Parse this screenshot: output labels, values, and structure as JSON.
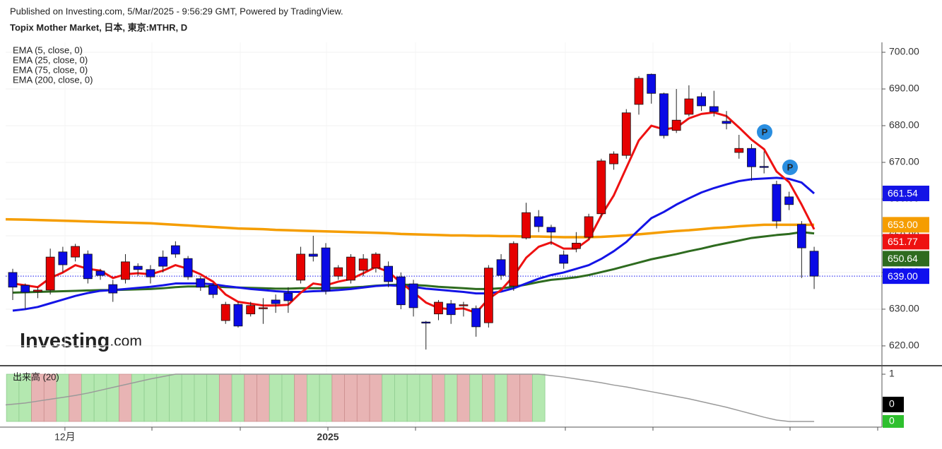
{
  "header": {
    "published": "Published on Investing.com, 5/Mar/2025 - 9:56:29 GMT, Powered by TradingView.",
    "watermark": [
      "Investing",
      ".com"
    ]
  },
  "chart_data": {
    "type": "candlestick",
    "title": "Topix Mother Market, 日本, 東京:MTHR, D",
    "categories": [
      null,
      null,
      null,
      null,
      "12月",
      null,
      null,
      null,
      null,
      null,
      null,
      null,
      null,
      null,
      null,
      null,
      null,
      null,
      null,
      null,
      null,
      null,
      null,
      null,
      null,
      "2025",
      null,
      null,
      null,
      null,
      null,
      null,
      null,
      null,
      null,
      null,
      null,
      null,
      null,
      null,
      null,
      null,
      null,
      null,
      null,
      null,
      null,
      null,
      null,
      null,
      null,
      null,
      null,
      null,
      null,
      null,
      null,
      null,
      null,
      null,
      null,
      null,
      null,
      null,
      null
    ],
    "candles": {
      "open": [
        640,
        636.5,
        634.8,
        635.2,
        645.6,
        644.2,
        645,
        640.4,
        636.7,
        638.1,
        641.7,
        640.8,
        644.2,
        647.3,
        643.8,
        638.3,
        636.5,
        626.9,
        631.3,
        628.7,
        630.2,
        632.5,
        634.4,
        637.9,
        645,
        646.7,
        639,
        637.9,
        640.6,
        641.2,
        641.7,
        638.8,
        636.9,
        626.5,
        628.7,
        631.5,
        631,
        630.2,
        626.3,
        643.5,
        636.3,
        649.4,
        655.2,
        652.3,
        644.8,
        646.5,
        649.6,
        656,
        669.6,
        671.9,
        685.8,
        694,
        688.7,
        678.7,
        683.1,
        687.9,
        685.2,
        681.2,
        672.7,
        673.8,
        668.9,
        664,
        660.6,
        653.1,
        645.8
      ],
      "high": [
        641,
        637,
        636,
        646.5,
        647,
        647.8,
        646,
        641,
        638,
        645,
        642.5,
        642,
        646,
        648.5,
        644.5,
        639,
        637,
        632,
        632,
        632,
        633,
        634,
        636,
        647,
        650,
        648,
        642,
        645,
        645,
        645.5,
        643,
        640,
        638,
        626.8,
        632.5,
        632.5,
        632,
        631,
        642,
        645,
        648.5,
        659,
        657,
        653,
        646,
        651,
        656,
        671,
        673,
        684.5,
        693.5,
        694.2,
        689,
        690,
        691,
        689,
        689.5,
        684,
        677.5,
        675,
        673,
        665,
        662,
        654,
        647
      ],
      "low": [
        632.5,
        630,
        633,
        634,
        640,
        643,
        637,
        638,
        632,
        637,
        639,
        637,
        640,
        644,
        638,
        635,
        633,
        626,
        625,
        628,
        626,
        629,
        629,
        637,
        643,
        634,
        638,
        637,
        639,
        640,
        636,
        630,
        628,
        619,
        627,
        626,
        628,
        622.5,
        625,
        638,
        635,
        649,
        651,
        647.5,
        641,
        645.5,
        649,
        655,
        668,
        671,
        683,
        686,
        676.5,
        678,
        682.5,
        684,
        682.5,
        679,
        671,
        665,
        667,
        652,
        657,
        638.5,
        635.5
      ],
      "close": [
        636,
        634.6,
        635.2,
        644.2,
        642.1,
        647.1,
        638.3,
        639.2,
        634.4,
        642.9,
        640.8,
        638.8,
        641.7,
        645,
        638.8,
        636,
        634,
        631.3,
        625.4,
        631,
        630.4,
        631.5,
        632.3,
        645,
        644.4,
        635,
        641.3,
        644.2,
        643.7,
        645,
        637.5,
        631.2,
        630.4,
        626.2,
        631.9,
        628.5,
        631.2,
        625.2,
        641.2,
        639.2,
        647.9,
        656.3,
        652.5,
        651,
        642.5,
        648,
        655.2,
        670.4,
        672.3,
        683.5,
        692.9,
        688.8,
        677.3,
        681.5,
        687.3,
        685.4,
        683.8,
        680.6,
        673.8,
        668.8,
        668.7,
        654,
        658.5,
        646.7,
        639
      ],
      "up_color": "#e60000",
      "down_color": "#0a0ae6",
      "last_close_label": "639.00"
    },
    "series": [
      {
        "name": "EMA (5, close, 0)",
        "color": "#ee1111",
        "last_label": "651.77",
        "values": [
          637,
          636.5,
          636,
          638.5,
          640,
          642,
          641,
          640.5,
          638.5,
          639.5,
          639.8,
          639.5,
          640.5,
          642,
          641,
          639.5,
          637.5,
          634,
          632,
          631.5,
          631,
          631,
          631.2,
          634.5,
          637,
          636.5,
          637.5,
          638.2,
          639.8,
          641.5,
          640.2,
          637.2,
          634.6,
          631.8,
          630.3,
          630,
          630.2,
          629,
          632.8,
          635.2,
          639,
          644,
          647,
          648.2,
          646.5,
          646.5,
          649,
          655.5,
          661,
          668.5,
          676,
          680,
          679,
          679.5,
          682,
          683.2,
          683.6,
          682.6,
          679.5,
          676.2,
          673.6,
          667.5,
          664.6,
          658.5,
          651.77
        ]
      },
      {
        "name": "EMA (25, close, 0)",
        "color": "#1414e6",
        "last_label": "661.54",
        "values": [
          629.6,
          630,
          630.6,
          631.6,
          632.6,
          633.6,
          634.4,
          635,
          635.2,
          635.5,
          635.8,
          636.1,
          636.5,
          637,
          637,
          637,
          636.8,
          636.3,
          635.9,
          635.5,
          635.2,
          634.9,
          634.7,
          634.7,
          634.9,
          635,
          635.2,
          635.5,
          635.9,
          636.3,
          636.5,
          636.3,
          636.1,
          635.6,
          635.3,
          635,
          634.7,
          634.3,
          634.3,
          634.8,
          635.7,
          637,
          638.3,
          639.3,
          640,
          641,
          642,
          643.7,
          645.8,
          648.3,
          651.6,
          654.8,
          656.5,
          658.5,
          660.2,
          661.8,
          663,
          664,
          664.9,
          665.4,
          665.6,
          665.8,
          665.5,
          664.5,
          661.54
        ]
      },
      {
        "name": "EMA (75, close, 0)",
        "color": "#2e6b1f",
        "last_label": "650.64",
        "values": [
          634.5,
          634.6,
          634.7,
          634.8,
          634.9,
          635,
          635.1,
          635.2,
          635.2,
          635.3,
          635.4,
          635.5,
          635.7,
          636,
          636.2,
          636.2,
          636.2,
          636,
          635.9,
          635.8,
          635.7,
          635.6,
          635.6,
          635.7,
          635.7,
          635.7,
          635.8,
          635.9,
          636.1,
          636.4,
          636.6,
          636.7,
          636.6,
          636.4,
          636.1,
          635.9,
          635.7,
          635.5,
          635.5,
          635.7,
          636.1,
          636.7,
          637.4,
          638,
          638.3,
          638.7,
          639.3,
          640.1,
          640.9,
          641.8,
          642.7,
          643.6,
          644.3,
          645,
          645.8,
          646.5,
          647.3,
          648,
          648.7,
          649.4,
          649.8,
          650.2,
          650.5,
          651,
          650.64
        ]
      },
      {
        "name": "EMA (200, close, 0)",
        "color": "#f59d00",
        "last_label": "653.00",
        "values": [
          654.5,
          654.4,
          654.3,
          654.2,
          654.1,
          654,
          653.9,
          653.8,
          653.7,
          653.6,
          653.5,
          653.4,
          653.2,
          653,
          652.8,
          652.6,
          652.4,
          652.2,
          652,
          651.9,
          651.8,
          651.6,
          651.5,
          651.4,
          651.3,
          651.2,
          651.1,
          651,
          650.9,
          650.8,
          650.7,
          650.5,
          650.4,
          650.3,
          650.2,
          650.1,
          650.1,
          650,
          650,
          649.9,
          649.9,
          649.8,
          649.8,
          649.7,
          649.6,
          649.6,
          649.6,
          649.7,
          649.9,
          650.1,
          650.4,
          650.7,
          651,
          651.3,
          651.5,
          651.8,
          652.1,
          652.3,
          652.6,
          652.8,
          653,
          653,
          653,
          653,
          653
        ]
      }
    ],
    "ylim": [
      614.6,
      702.7
    ],
    "yticks": [
      {
        "value": 620,
        "label": "620.00"
      },
      {
        "value": 630,
        "label": "630.00"
      },
      {
        "value": 640,
        "label": "640.00"
      },
      {
        "value": 650,
        "label": "650.00"
      },
      {
        "value": 660,
        "label": "660.00"
      },
      {
        "value": 670,
        "label": "670.00"
      },
      {
        "value": 680,
        "label": "680.00"
      },
      {
        "value": 690,
        "label": "690.00"
      },
      {
        "value": 700,
        "label": "700.00"
      }
    ],
    "grid": true,
    "markers": [
      "P",
      "P"
    ],
    "volume": {
      "name": "出来高 (20)",
      "up_color": "#e8b4b4",
      "down_color": "#b4e8b0",
      "ma_color": "#9a9a9a",
      "values": [
        1,
        1,
        1,
        1,
        1,
        1,
        1,
        1,
        1,
        1,
        1,
        1,
        1,
        1,
        1,
        1,
        1,
        1,
        1,
        1,
        1,
        1,
        1,
        1,
        1,
        1,
        1,
        1,
        1,
        1,
        1,
        1,
        1,
        1,
        1,
        1,
        1,
        1,
        1,
        1,
        1,
        1,
        1,
        0,
        0,
        0,
        0,
        0,
        0,
        0,
        0,
        0,
        0,
        0,
        0,
        0,
        0,
        0,
        0,
        0,
        0,
        0,
        0,
        0,
        0
      ],
      "ma": [
        0.35,
        0.39,
        0.43,
        0.47,
        0.51,
        0.55,
        0.6,
        0.66,
        0.72,
        0.78,
        0.84,
        0.9,
        0.95,
        1,
        1,
        1,
        1,
        1,
        1,
        1,
        1,
        1,
        1,
        1,
        1,
        1,
        1,
        1,
        1,
        1,
        1,
        1,
        1,
        1,
        1,
        1,
        1,
        1,
        1,
        1,
        1,
        1,
        1,
        0.97,
        0.94,
        0.9,
        0.86,
        0.82,
        0.77,
        0.73,
        0.68,
        0.63,
        0.58,
        0.53,
        0.48,
        0.42,
        0.36,
        0.3,
        0.23,
        0.16,
        0.09,
        0.03,
        0,
        0,
        0
      ],
      "ylim": [
        -0.12,
        1.18
      ],
      "yticks": [
        1
      ]
    }
  }
}
